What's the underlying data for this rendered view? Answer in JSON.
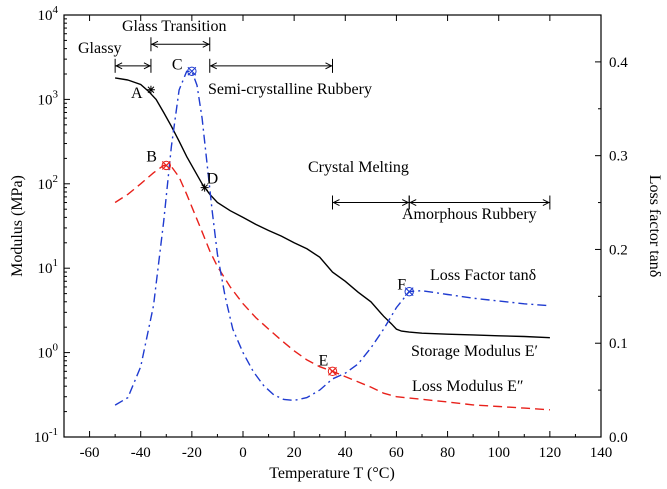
{
  "chart_data": {
    "type": "line",
    "xlabel": "Temperature T (°C)",
    "ylabel_left": "Modulus (MPa)",
    "ylabel_right": "Loss factor tanδ",
    "xlim": [
      -70,
      140
    ],
    "ylim_left": [
      0.1,
      10000
    ],
    "yscale_left": "log",
    "ylim_right": [
      0.0,
      0.45
    ],
    "x_ticks": [
      -60,
      -40,
      -20,
      0,
      20,
      40,
      60,
      80,
      100,
      120,
      140
    ],
    "y_left_ticks": [
      {
        "value": 0.1,
        "mant": "10",
        "exp": "-1"
      },
      {
        "value": 1,
        "mant": "10",
        "exp": "0"
      },
      {
        "value": 10,
        "mant": "10",
        "exp": "1"
      },
      {
        "value": 100,
        "mant": "10",
        "exp": "2"
      },
      {
        "value": 1000,
        "mant": "10",
        "exp": "3"
      },
      {
        "value": 10000,
        "mant": "10",
        "exp": "4"
      }
    ],
    "y_right_ticks": [
      "0.0",
      "0.1",
      "0.2",
      "0.3",
      "0.4"
    ],
    "y_right_tick_values": [
      0.0,
      0.1,
      0.2,
      0.3,
      0.4
    ],
    "grid": false,
    "series": [
      {
        "name": "Storage Modulus E′",
        "axis": "left",
        "color": "#000000",
        "style": "solid",
        "x": [
          -50,
          -45,
          -40,
          -37,
          -34,
          -31,
          -28,
          -25,
          -22,
          -19,
          -16,
          -13,
          -10,
          -5,
          0,
          5,
          10,
          15,
          20,
          25,
          30,
          35,
          40,
          45,
          50,
          55,
          58,
          60,
          62,
          65,
          70,
          80,
          90,
          100,
          110,
          120
        ],
        "y": [
          1800,
          1700,
          1500,
          1250,
          1000,
          700,
          480,
          320,
          210,
          145,
          100,
          75,
          60,
          48,
          40,
          33,
          28,
          24,
          20,
          17,
          13.5,
          9,
          7,
          5.2,
          4,
          2.7,
          2.2,
          1.9,
          1.8,
          1.75,
          1.7,
          1.65,
          1.62,
          1.58,
          1.55,
          1.5
        ]
      },
      {
        "name": "Loss Modulus E″",
        "axis": "left",
        "color": "#e8211b",
        "style": "dashed",
        "x": [
          -50,
          -45,
          -40,
          -35,
          -31,
          -28,
          -25,
          -22,
          -19,
          -16,
          -13,
          -10,
          -5,
          0,
          5,
          10,
          15,
          20,
          25,
          30,
          35,
          40,
          45,
          50,
          55,
          60,
          65,
          70,
          80,
          90,
          100,
          110,
          120
        ],
        "y": [
          60,
          75,
          100,
          135,
          165,
          160,
          120,
          75,
          45,
          27,
          16,
          10.5,
          6,
          3.8,
          2.6,
          1.9,
          1.4,
          1.05,
          0.82,
          0.68,
          0.6,
          0.52,
          0.45,
          0.39,
          0.33,
          0.3,
          0.29,
          0.28,
          0.26,
          0.24,
          0.23,
          0.22,
          0.21
        ]
      },
      {
        "name": "Loss Factor tanδ",
        "axis": "right",
        "color": "#1f3bd0",
        "style": "dashdot",
        "x": [
          -50,
          -45,
          -40,
          -35,
          -31,
          -28,
          -25,
          -22,
          -20,
          -18,
          -16,
          -14,
          -12,
          -10,
          -7,
          -4,
          0,
          4,
          8,
          12,
          16,
          20,
          25,
          30,
          35,
          40,
          45,
          50,
          55,
          60,
          65,
          70,
          80,
          90,
          100,
          110,
          120
        ],
        "y": [
          0.034,
          0.042,
          0.075,
          0.14,
          0.23,
          0.31,
          0.37,
          0.39,
          0.39,
          0.375,
          0.34,
          0.29,
          0.24,
          0.195,
          0.15,
          0.115,
          0.09,
          0.07,
          0.055,
          0.045,
          0.04,
          0.039,
          0.042,
          0.05,
          0.062,
          0.068,
          0.078,
          0.095,
          0.115,
          0.138,
          0.155,
          0.156,
          0.152,
          0.148,
          0.145,
          0.142,
          0.14
        ]
      }
    ],
    "markers": [
      {
        "label": "A",
        "x": -36,
        "y": 1300,
        "axis": "left",
        "color": "#000000"
      },
      {
        "label": "B",
        "x": -30,
        "y": 165,
        "axis": "left",
        "color": "#e8211b"
      },
      {
        "label": "C",
        "x": -20,
        "y": 0.39,
        "axis": "right",
        "color": "#1f3bd0"
      },
      {
        "label": "D",
        "x": -15,
        "y": 90,
        "axis": "left",
        "color": "#000000"
      },
      {
        "label": "E",
        "x": 35,
        "y": 0.6,
        "axis": "left",
        "color": "#e8211b"
      },
      {
        "label": "F",
        "x": 65,
        "y": 0.155,
        "axis": "right",
        "color": "#1f3bd0"
      }
    ],
    "annotations": {
      "glassy": "Glassy",
      "glass_transition": "Glass Transition",
      "semi_crystalline": "Semi-crystalline Rubbery",
      "crystal_melting": "Crystal Melting",
      "amorphous": "Amorphous Rubbery",
      "loss_factor_label": "Loss Factor tanδ",
      "storage_label": "Storage Modulus E′",
      "loss_modulus_label": "Loss Modulus E″"
    },
    "spans": [
      {
        "name": "glassy",
        "x1": -50,
        "x2": -36,
        "yval": 2500,
        "label_key": "glassy"
      },
      {
        "name": "glass-transition",
        "x1": -36,
        "x2": -13,
        "yval": 4500,
        "label_key": "glass_transition"
      },
      {
        "name": "semi-crystalline",
        "x1": -13,
        "x2": 35,
        "yval": 2500,
        "label_key": "semi_crystalline"
      },
      {
        "name": "crystal-melting",
        "x1": 35,
        "x2": 65,
        "yval": 60,
        "label_key": "crystal_melting"
      },
      {
        "name": "amorphous",
        "x1": 65,
        "x2": 120,
        "yval": 60,
        "label_key": "amorphous"
      }
    ]
  }
}
